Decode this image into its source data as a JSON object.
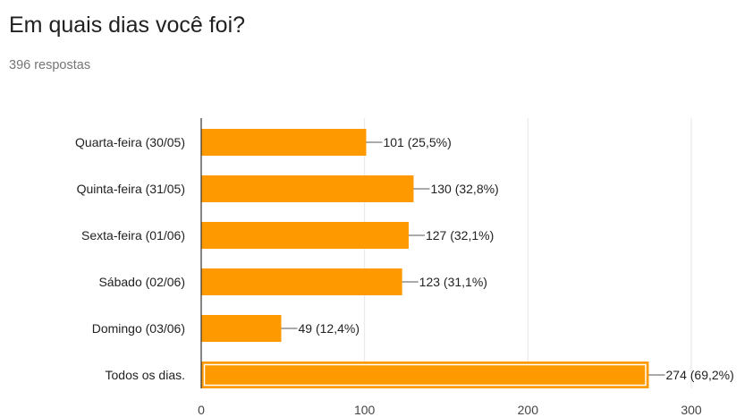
{
  "header": {
    "title": "Em quais dias você foi?",
    "response_count": "396 respostas"
  },
  "chart_data": {
    "type": "bar",
    "orientation": "horizontal",
    "title": "",
    "xlabel": "",
    "ylabel": "",
    "categories": [
      "Quarta-feira (30/05)",
      "Quinta-feira (31/05)",
      "Sexta-feira (01/06)",
      "Sábado (02/06)",
      "Domingo (03/06)",
      "Todos os dias."
    ],
    "values": [
      101,
      130,
      127,
      123,
      49,
      274
    ],
    "value_labels": [
      "101 (25,5%)",
      "130 (32,8%)",
      "127 (32,1%)",
      "123 (31,1%)",
      "49 (12,4%)",
      "274 (69,2%)"
    ],
    "xlim": [
      0,
      300
    ],
    "xticks": [
      0,
      100,
      200,
      300
    ],
    "grid": true,
    "bar_color": "#ff9900",
    "highlighted_index": 5
  }
}
